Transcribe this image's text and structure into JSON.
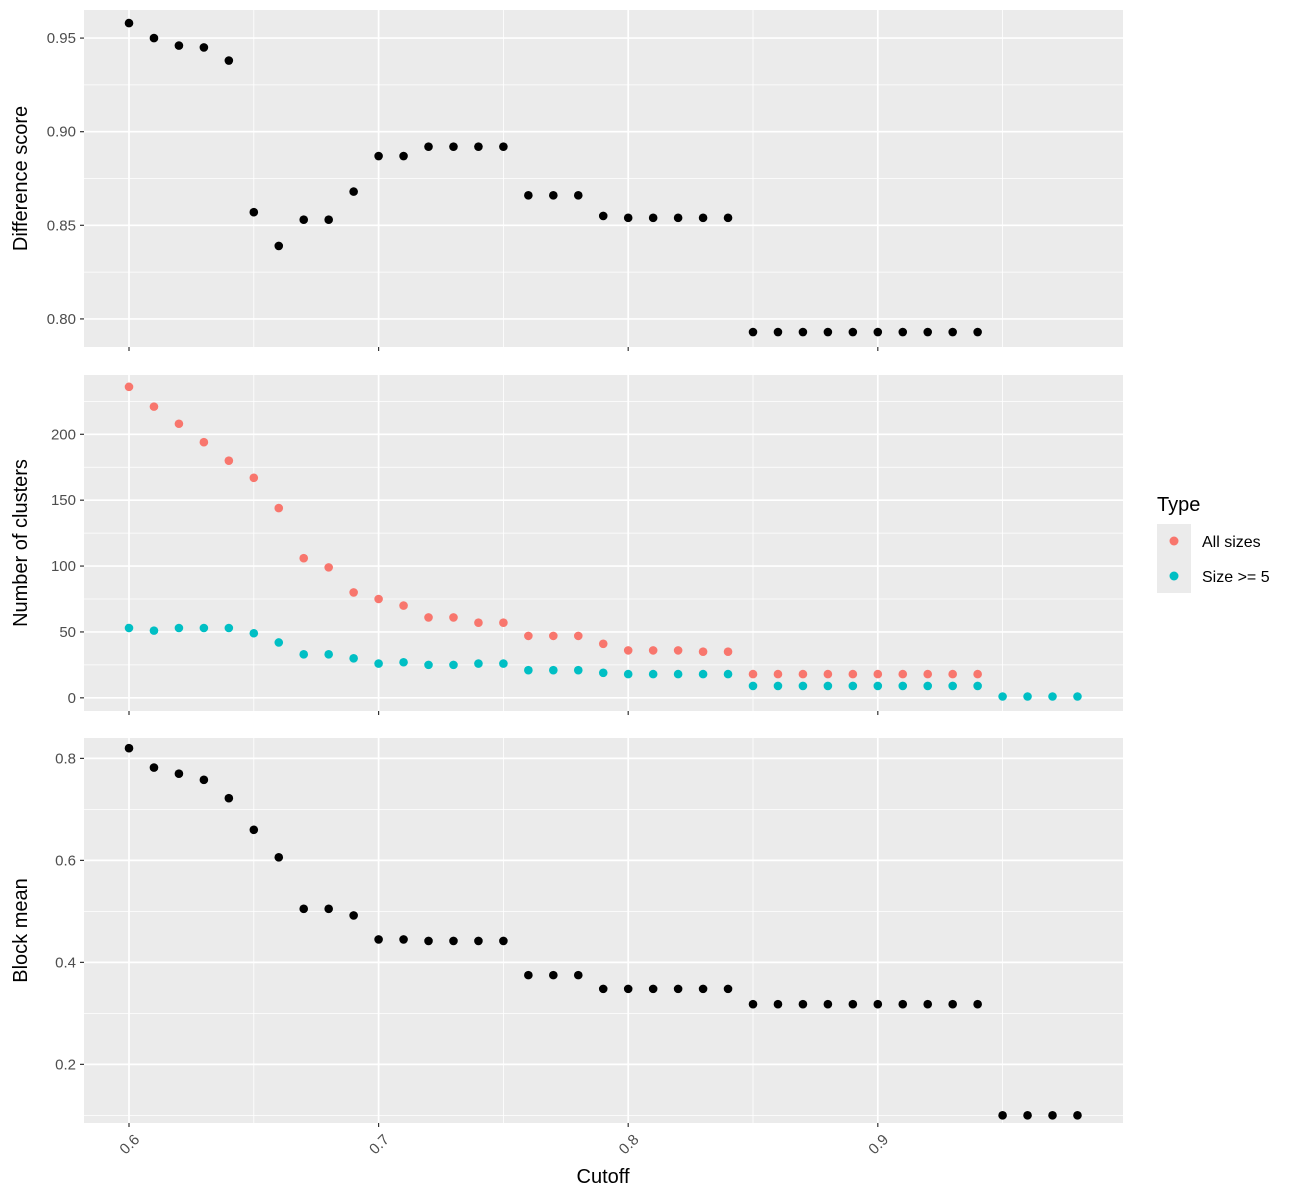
{
  "chart_data": {
    "type": "scatter",
    "xlabel": "Cutoff",
    "x_ticks": [
      "0.6",
      "0.7",
      "0.8",
      "0.9"
    ],
    "xlim": [
      0.6,
      0.98
    ],
    "legend": {
      "title": "Type",
      "placement": "right",
      "entries": [
        {
          "label": "All sizes",
          "color": "#F8766D"
        },
        {
          "label": "Size >= 5",
          "color": "#00BFC4"
        }
      ]
    },
    "panels": [
      {
        "ylabel": "Difference score",
        "ylim": [
          0.785,
          0.965
        ],
        "y_ticks": [
          "0.80",
          "0.85",
          "0.90",
          "0.95"
        ],
        "series": [
          {
            "color": "#000000",
            "x": [
              0.6,
              0.61,
              0.62,
              0.63,
              0.64,
              0.65,
              0.66,
              0.67,
              0.68,
              0.69,
              0.7,
              0.71,
              0.72,
              0.73,
              0.74,
              0.75,
              0.76,
              0.77,
              0.78,
              0.79,
              0.8,
              0.81,
              0.82,
              0.83,
              0.84,
              0.85,
              0.86,
              0.87,
              0.88,
              0.89,
              0.9,
              0.91,
              0.92,
              0.93,
              0.94
            ],
            "y": [
              0.958,
              0.95,
              0.946,
              0.945,
              0.938,
              0.857,
              0.839,
              0.853,
              0.853,
              0.868,
              0.887,
              0.887,
              0.892,
              0.892,
              0.892,
              0.892,
              0.866,
              0.866,
              0.866,
              0.855,
              0.854,
              0.854,
              0.854,
              0.854,
              0.854,
              0.793,
              0.793,
              0.793,
              0.793,
              0.793,
              0.793,
              0.793,
              0.793,
              0.793,
              0.793
            ]
          }
        ]
      },
      {
        "ylabel": "Number of clusters",
        "ylim": [
          -10,
          245
        ],
        "y_ticks": [
          "0",
          "50",
          "100",
          "150",
          "200"
        ],
        "series": [
          {
            "name": "All sizes",
            "color": "#F8766D",
            "x": [
              0.6,
              0.61,
              0.62,
              0.63,
              0.64,
              0.65,
              0.66,
              0.67,
              0.68,
              0.69,
              0.7,
              0.71,
              0.72,
              0.73,
              0.74,
              0.75,
              0.76,
              0.77,
              0.78,
              0.79,
              0.8,
              0.81,
              0.82,
              0.83,
              0.84,
              0.85,
              0.86,
              0.87,
              0.88,
              0.89,
              0.9,
              0.91,
              0.92,
              0.93,
              0.94
            ],
            "y": [
              236,
              221,
              208,
              194,
              180,
              167,
              144,
              106,
              99,
              80,
              75,
              70,
              61,
              61,
              57,
              57,
              47,
              47,
              47,
              41,
              36,
              36,
              36,
              35,
              35,
              18,
              18,
              18,
              18,
              18,
              18,
              18,
              18,
              18,
              18
            ]
          },
          {
            "name": "Size >= 5",
            "color": "#00BFC4",
            "x": [
              0.6,
              0.61,
              0.62,
              0.63,
              0.64,
              0.65,
              0.66,
              0.67,
              0.68,
              0.69,
              0.7,
              0.71,
              0.72,
              0.73,
              0.74,
              0.75,
              0.76,
              0.77,
              0.78,
              0.79,
              0.8,
              0.81,
              0.82,
              0.83,
              0.84,
              0.85,
              0.86,
              0.87,
              0.88,
              0.89,
              0.9,
              0.91,
              0.92,
              0.93,
              0.94,
              0.95,
              0.96,
              0.97,
              0.98
            ],
            "y": [
              53,
              51,
              53,
              53,
              53,
              49,
              42,
              33,
              33,
              30,
              26,
              27,
              25,
              25,
              26,
              26,
              21,
              21,
              21,
              19,
              18,
              18,
              18,
              18,
              18,
              9,
              9,
              9,
              9,
              9,
              9,
              9,
              9,
              9,
              9,
              1,
              1,
              1,
              1
            ]
          }
        ]
      },
      {
        "ylabel": "Block mean",
        "ylim": [
          0.085,
          0.84
        ],
        "y_ticks": [
          "0.2",
          "0.4",
          "0.6",
          "0.8"
        ],
        "series": [
          {
            "color": "#000000",
            "x": [
              0.6,
              0.61,
              0.62,
              0.63,
              0.64,
              0.65,
              0.66,
              0.67,
              0.68,
              0.69,
              0.7,
              0.71,
              0.72,
              0.73,
              0.74,
              0.75,
              0.76,
              0.77,
              0.78,
              0.79,
              0.8,
              0.81,
              0.82,
              0.83,
              0.84,
              0.85,
              0.86,
              0.87,
              0.88,
              0.89,
              0.9,
              0.91,
              0.92,
              0.93,
              0.94,
              0.95,
              0.96,
              0.97,
              0.98
            ],
            "y": [
              0.82,
              0.782,
              0.77,
              0.758,
              0.722,
              0.66,
              0.606,
              0.505,
              0.505,
              0.492,
              0.445,
              0.445,
              0.442,
              0.442,
              0.442,
              0.442,
              0.375,
              0.375,
              0.375,
              0.348,
              0.348,
              0.348,
              0.348,
              0.348,
              0.348,
              0.318,
              0.318,
              0.318,
              0.318,
              0.318,
              0.318,
              0.318,
              0.318,
              0.318,
              0.318,
              0.1,
              0.1,
              0.1,
              0.1
            ]
          }
        ]
      }
    ]
  }
}
